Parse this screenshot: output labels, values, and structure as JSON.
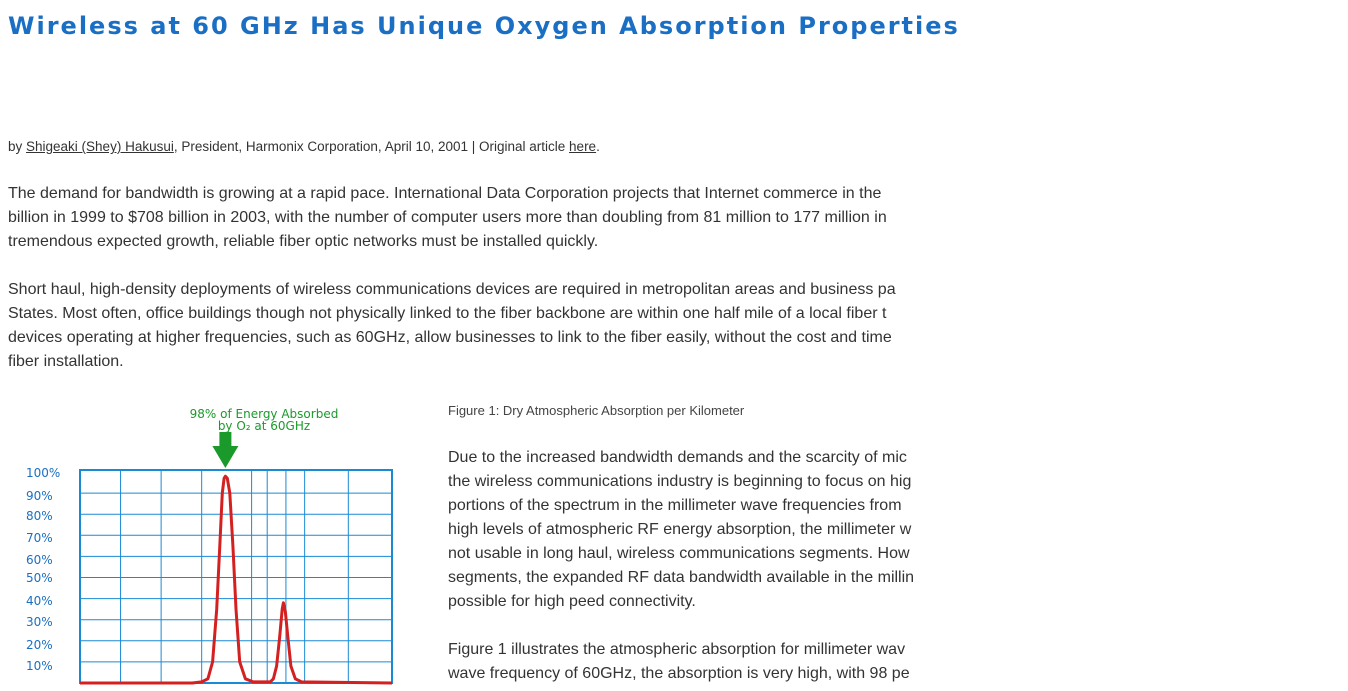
{
  "article": {
    "title": "Wireless at 60 GHz Has Unique Oxygen Absorption Properties",
    "byline": {
      "prefix": "by ",
      "author": "Shigeaki (Shey) Hakusui",
      "affiliation": ", President, Harmonix Corporation, April 10, 2001 | Original article ",
      "link": "here",
      "suffix": "."
    },
    "paragraphs": [
      [
        "The demand for bandwidth is growing at a rapid pace. International Data Corporation projects that Internet commerce in the",
        "billion in 1999 to $708 billion in 2003, with the number of computer users more than doubling from 81 million to 177 million in",
        "tremendous expected growth, reliable fiber optic networks must be installed quickly."
      ],
      [
        "Short haul, high-density deployments of wireless communications devices are required in metropolitan areas and business pa",
        "States. Most often, office buildings though not physically linked to the fiber backbone are within one half mile of a local fiber t",
        "devices operating at higher frequencies, such as 60GHz, allow businesses to link to the fiber easily, without the cost and time",
        "fiber installation."
      ],
      [
        "Due to the increased bandwidth demands and the scarcity of mic",
        "the wireless communications industry is beginning to focus on hig",
        "portions of the spectrum in the millimeter wave frequencies from",
        "high levels of atmospheric RF energy absorption, the millimeter w",
        "not usable in long haul, wireless communications segments. How",
        "segments, the expanded RF data bandwidth available in the millin",
        "possible for high peed connectivity."
      ],
      [
        "Figure 1 illustrates the atmospheric absorption for millimeter wav",
        "wave frequency of 60GHz, the absorption is very high, with 98 pe"
      ]
    ],
    "figure_caption": "Figure 1: Dry Atmospheric Absorption per Kilometer"
  },
  "chart_data": {
    "type": "line",
    "annotation": [
      "98% of Energy Absorbed",
      "by O₂ at 60GHz"
    ],
    "y_ticks": [
      "100%",
      "90%",
      "80%",
      "70%",
      "60%",
      "50%",
      "40%",
      "30%",
      "20%",
      "10%"
    ],
    "ylim": [
      0,
      100
    ],
    "xlim": [
      0,
      10
    ],
    "grid": true,
    "series": [
      {
        "color": "#d42020",
        "points": [
          [
            0,
            0
          ],
          [
            3.6,
            0
          ],
          [
            3.9,
            0.5
          ],
          [
            4.1,
            2
          ],
          [
            4.25,
            10
          ],
          [
            4.38,
            35
          ],
          [
            4.48,
            65
          ],
          [
            4.56,
            90
          ],
          [
            4.62,
            97
          ],
          [
            4.66,
            98
          ],
          [
            4.72,
            97
          ],
          [
            4.8,
            90
          ],
          [
            4.9,
            65
          ],
          [
            5.0,
            35
          ],
          [
            5.12,
            10
          ],
          [
            5.3,
            2
          ],
          [
            5.55,
            0.5
          ],
          [
            6.1,
            0.5
          ],
          [
            6.2,
            2
          ],
          [
            6.3,
            8
          ],
          [
            6.4,
            22
          ],
          [
            6.48,
            35
          ],
          [
            6.52,
            38
          ],
          [
            6.58,
            34
          ],
          [
            6.66,
            22
          ],
          [
            6.76,
            8
          ],
          [
            6.9,
            2
          ],
          [
            7.1,
            0.5
          ],
          [
            10,
            0
          ]
        ]
      }
    ],
    "colors": {
      "grid": "#1a8ad4",
      "arrow": "#1a9a2a",
      "annotation": "#1a9a2a",
      "ticks": "#1a6fc4"
    }
  }
}
